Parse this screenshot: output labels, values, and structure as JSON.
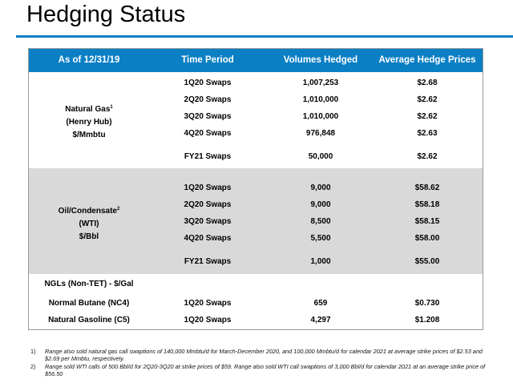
{
  "title": "Hedging Status",
  "colors": {
    "accent": "#0b7fc4",
    "shaded_row": "#d9d9d9"
  },
  "table": {
    "headers": [
      "As of 12/31/19",
      "Time Period",
      "Volumes Hedged",
      "Average Hedge Prices"
    ],
    "sections": {
      "gas": {
        "label_lines": [
          "Natural Gas",
          "(Henry Hub)",
          "$/Mmbtu"
        ],
        "label_sup": "1",
        "rows": [
          {
            "period": "1Q20 Swaps",
            "volume": "1,007,253",
            "price": "$2.68"
          },
          {
            "period": "2Q20 Swaps",
            "volume": "1,010,000",
            "price": "$2.62"
          },
          {
            "period": "3Q20 Swaps",
            "volume": "1,010,000",
            "price": "$2.62"
          },
          {
            "period": "4Q20 Swaps",
            "volume": "976,848",
            "price": "$2.63"
          },
          {
            "period": "FY21 Swaps",
            "volume": "50,000",
            "price": "$2.62"
          }
        ]
      },
      "oil": {
        "label_lines": [
          "Oil/Condensate",
          "(WTI)",
          "$/Bbl"
        ],
        "label_sup": "2",
        "rows": [
          {
            "period": "1Q20 Swaps",
            "volume": "9,000",
            "price": "$58.62"
          },
          {
            "period": "2Q20 Swaps",
            "volume": "9,000",
            "price": "$58.18"
          },
          {
            "period": "3Q20 Swaps",
            "volume": "8,500",
            "price": "$58.15"
          },
          {
            "period": "4Q20 Swaps",
            "volume": "5,500",
            "price": "$58.00"
          },
          {
            "period": "FY21 Swaps",
            "volume": "1,000",
            "price": "$55.00"
          }
        ]
      },
      "ngl": {
        "header_label": "NGLs (Non-TET) - $/Gal",
        "rows": [
          {
            "label": "Normal Butane (NC4)",
            "period": "1Q20 Swaps",
            "volume": "659",
            "price": "$0.730"
          },
          {
            "label": "Natural Gasoline (C5)",
            "period": "1Q20 Swaps",
            "volume": "4,297",
            "price": "$1.208"
          }
        ]
      }
    }
  },
  "footnotes": [
    {
      "num": "1)",
      "text": "Range also sold natural gas call swaptions of 140,000 Mmbtu/d for March-December 2020, and 100,000 Mmbtu/d for calendar 2021 at average strike prices of $2.53 and $2.69 per Mmbtu, respectively."
    },
    {
      "num": "2)",
      "text": "Range sold WTI calls of 500 Bbl/d for 2Q20-3Q20 at strike prices of $59.  Range also sold WTI call swaptions of 3,000 Bbl/d for calendar 2021 at an average strike price of $56.50"
    }
  ]
}
